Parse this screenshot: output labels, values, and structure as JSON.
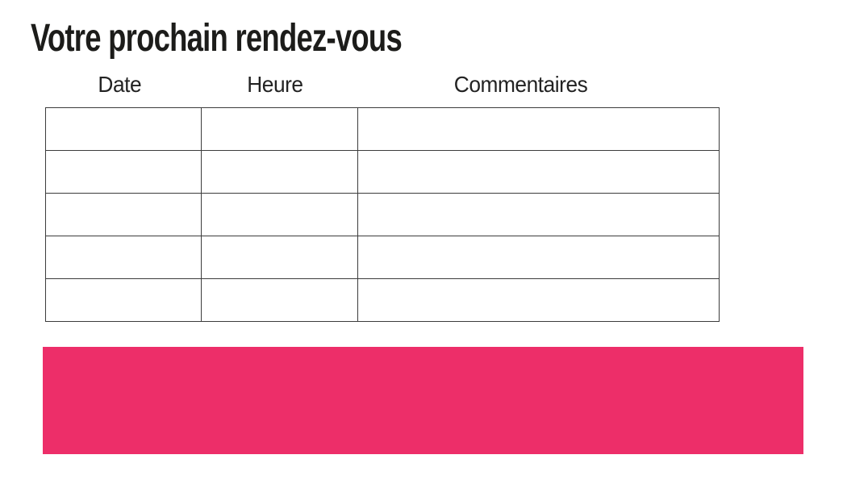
{
  "page": {
    "title": "Votre prochain rendez-vous"
  },
  "table": {
    "columns": [
      {
        "label": "Date"
      },
      {
        "label": "Heure"
      },
      {
        "label": "Commentaires"
      }
    ],
    "rows": [
      [
        "",
        "",
        ""
      ],
      [
        "",
        "",
        ""
      ],
      [
        "",
        "",
        ""
      ],
      [
        "",
        "",
        ""
      ],
      [
        "",
        "",
        ""
      ]
    ]
  },
  "colors": {
    "accent_pink": "#ED2E69",
    "table_border": "#3C3C3C",
    "text": "#1C1C1A"
  }
}
